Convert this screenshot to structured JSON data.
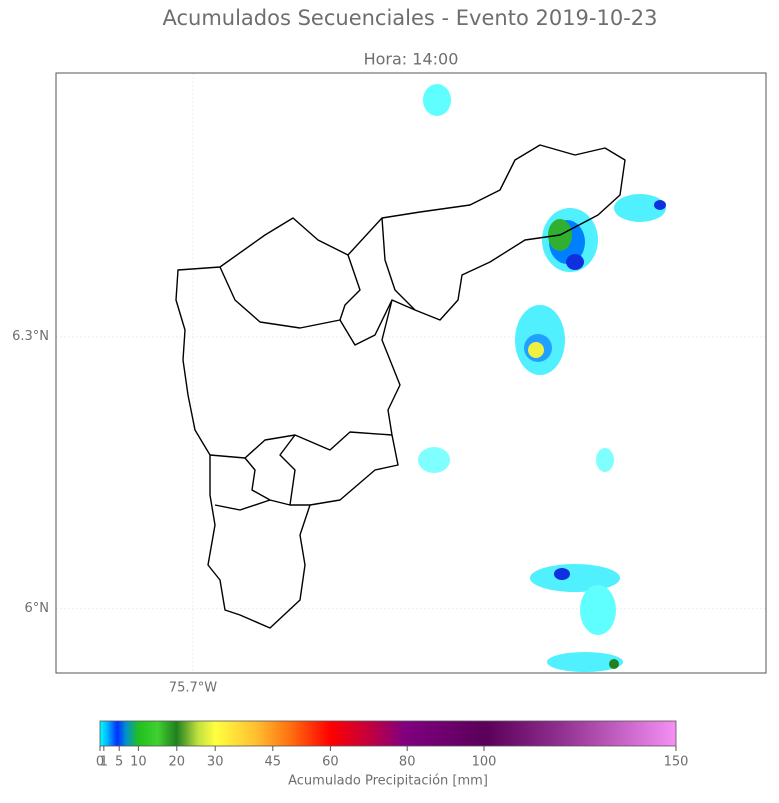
{
  "title": "Acumulados Secuenciales - Evento 2019-10-23",
  "subtitle": "Hora: 14:00",
  "map": {
    "xlim": [
      -75.852,
      -75.064
    ],
    "ylim": [
      5.929,
      6.591
    ],
    "xticks": [
      {
        "value": -75.7,
        "label": "75.7°W"
      }
    ],
    "yticks": [
      {
        "value": 6.0,
        "label": "6°N"
      },
      {
        "value": 6.3,
        "label": "6.3°N"
      }
    ],
    "grid": true
  },
  "colorbar": {
    "label": "Acumulado Precipitación [mm]",
    "lim": [
      0,
      150
    ],
    "ticks": [
      0,
      1,
      5,
      10,
      20,
      30,
      45,
      60,
      80,
      100,
      150
    ]
  }
}
